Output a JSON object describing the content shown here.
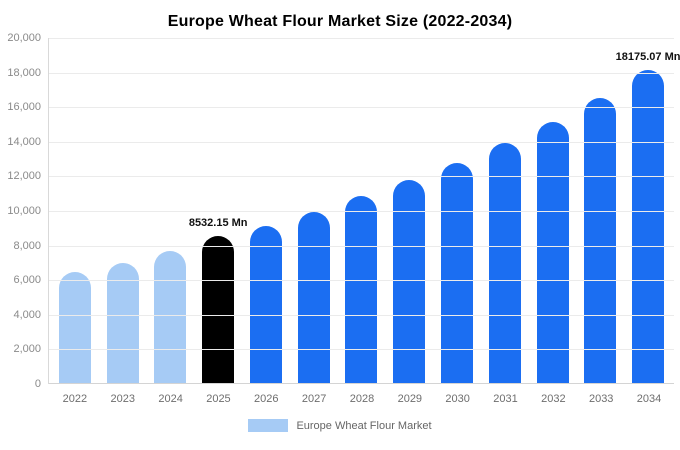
{
  "chart_data": {
    "type": "bar",
    "title": "Europe Wheat Flour Market Size (2022-2034)",
    "categories": [
      "2022",
      "2023",
      "2024",
      "2025",
      "2026",
      "2027",
      "2028",
      "2029",
      "2030",
      "2031",
      "2032",
      "2033",
      "2034"
    ],
    "values": [
      6450,
      7000,
      7700,
      8532.15,
      9150,
      9950,
      10850,
      11800,
      12800,
      13950,
      15150,
      16550,
      18175.07
    ],
    "bar_colors": [
      "#A6CBF5",
      "#A6CBF5",
      "#A6CBF5",
      "#000000",
      "#1B6EF2",
      "#1B6EF2",
      "#1B6EF2",
      "#1B6EF2",
      "#1B6EF2",
      "#1B6EF2",
      "#1B6EF2",
      "#1B6EF2",
      "#1B6EF2"
    ],
    "data_labels": [
      null,
      null,
      null,
      "8532.15 Mn",
      null,
      null,
      null,
      null,
      null,
      null,
      null,
      null,
      "18175.07 Mn"
    ],
    "ylim": [
      0,
      20000
    ],
    "yticks": [
      "0",
      "2,000",
      "4,000",
      "6,000",
      "8,000",
      "10,000",
      "12,000",
      "14,000",
      "16,000",
      "18,000",
      "20,000"
    ],
    "grid": true,
    "legend": {
      "label": "Europe Wheat Flour Market",
      "swatch_color": "#A6CBF5",
      "position": "bottom"
    },
    "colors": {
      "historical": "#A6CBF5",
      "base_year": "#000000",
      "forecast": "#1B6EF2"
    }
  }
}
